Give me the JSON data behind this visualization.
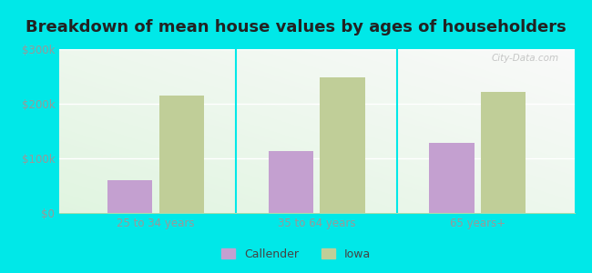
{
  "title": "Breakdown of mean house values by ages of householders",
  "categories": [
    "25 to 34 years",
    "35 to 64 years",
    "65 years+"
  ],
  "callender_values": [
    60000,
    113000,
    128000
  ],
  "iowa_values": [
    215000,
    248000,
    222000
  ],
  "ylim": [
    0,
    300000
  ],
  "yticks": [
    0,
    100000,
    200000,
    300000
  ],
  "ytick_labels": [
    "$0",
    "$100k",
    "$200k",
    "$300k"
  ],
  "callender_color": "#c4a0d0",
  "iowa_color": "#c0ce98",
  "bar_width": 0.28,
  "outer_bg_color": "#00e8e8",
  "legend_labels": [
    "Callender",
    "Iowa"
  ],
  "title_fontsize": 13,
  "tick_fontsize": 8.5,
  "watermark": "City-Data.com"
}
